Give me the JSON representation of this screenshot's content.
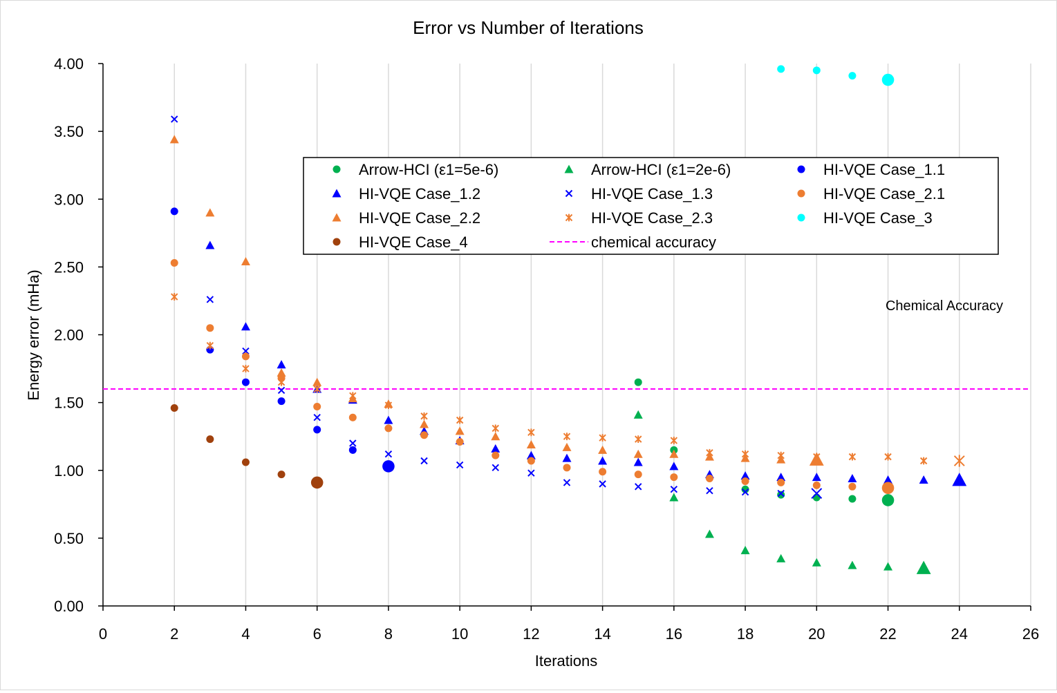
{
  "chart_data": {
    "type": "scatter",
    "title": "Error vs Number of Iterations",
    "xlabel": "Iterations",
    "ylabel": "Energy error (mHa)",
    "xlim": [
      0,
      26
    ],
    "ylim": [
      0,
      4
    ],
    "xticks": [
      "0",
      "2",
      "4",
      "6",
      "8",
      "10",
      "12",
      "14",
      "16",
      "18",
      "20",
      "22",
      "24",
      "26"
    ],
    "yticks": [
      "0.00",
      "0.50",
      "1.00",
      "1.50",
      "2.00",
      "2.50",
      "3.00",
      "3.50",
      "4.00"
    ],
    "grid": "vertical",
    "legend_position": "top-center",
    "annotation": "Chemical Accuracy",
    "reference_line": {
      "name": "chemical accuracy",
      "y": 1.6,
      "color": "#ff00ff",
      "style": "dashed"
    },
    "series": [
      {
        "name": "Arrow-HCI (ε1=5e-6)",
        "marker": "circle",
        "color": "#00b050",
        "x": [
          15,
          16,
          18,
          19,
          20,
          21,
          22
        ],
        "y": [
          1.65,
          1.15,
          0.86,
          0.82,
          0.8,
          0.79,
          0.78
        ]
      },
      {
        "name": "Arrow-HCI (ε1=2e-6)",
        "marker": "triangle",
        "color": "#00b050",
        "x": [
          15,
          16,
          17,
          18,
          19,
          20,
          21,
          22,
          23
        ],
        "y": [
          1.41,
          0.8,
          0.53,
          0.41,
          0.35,
          0.32,
          0.3,
          0.29,
          0.28
        ]
      },
      {
        "name": "HI-VQE Case_1.1",
        "marker": "circle",
        "color": "#0000ff",
        "x": [
          2,
          3,
          4,
          5,
          6,
          7,
          8
        ],
        "y": [
          2.91,
          1.89,
          1.65,
          1.51,
          1.3,
          1.15,
          1.03
        ]
      },
      {
        "name": "HI-VQE Case_1.2",
        "marker": "triangle",
        "color": "#0000ff",
        "x": [
          3,
          4,
          5,
          6,
          7,
          8,
          9,
          10,
          11,
          12,
          13,
          14,
          15,
          16,
          17,
          18,
          19,
          20,
          21,
          22,
          23,
          24
        ],
        "y": [
          2.66,
          2.06,
          1.78,
          1.6,
          1.52,
          1.37,
          1.29,
          1.22,
          1.16,
          1.11,
          1.09,
          1.07,
          1.06,
          1.03,
          0.97,
          0.96,
          0.95,
          0.95,
          0.94,
          0.93,
          0.93,
          0.93
        ]
      },
      {
        "name": "HI-VQE Case_1.3",
        "marker": "x",
        "color": "#0000ff",
        "x": [
          2,
          3,
          4,
          5,
          6,
          7,
          8,
          9,
          10,
          11,
          12,
          13,
          14,
          15,
          16,
          17,
          18,
          19,
          20
        ],
        "y": [
          3.59,
          2.26,
          1.88,
          1.59,
          1.39,
          1.2,
          1.12,
          1.07,
          1.04,
          1.02,
          0.98,
          0.91,
          0.9,
          0.88,
          0.86,
          0.85,
          0.84,
          0.83,
          0.83
        ]
      },
      {
        "name": "HI-VQE Case_2.1",
        "marker": "circle",
        "color": "#ed7d31",
        "x": [
          2,
          3,
          4,
          5,
          6,
          7,
          8,
          9,
          10,
          11,
          12,
          13,
          14,
          15,
          16,
          17,
          18,
          19,
          20,
          21,
          22
        ],
        "y": [
          2.53,
          2.05,
          1.84,
          1.68,
          1.47,
          1.39,
          1.31,
          1.26,
          1.21,
          1.11,
          1.07,
          1.02,
          0.99,
          0.97,
          0.95,
          0.94,
          0.92,
          0.91,
          0.89,
          0.88,
          0.87
        ]
      },
      {
        "name": "HI-VQE Case_2.2",
        "marker": "triangle",
        "color": "#ed7d31",
        "x": [
          2,
          3,
          4,
          5,
          6,
          7,
          8,
          9,
          10,
          11,
          12,
          13,
          14,
          15,
          16,
          17,
          18,
          19,
          20
        ],
        "y": [
          3.44,
          2.9,
          2.54,
          1.72,
          1.65,
          1.53,
          1.49,
          1.34,
          1.29,
          1.25,
          1.19,
          1.17,
          1.15,
          1.12,
          1.12,
          1.1,
          1.09,
          1.08,
          1.08
        ]
      },
      {
        "name": "HI-VQE Case_2.3",
        "marker": "star",
        "color": "#ed7d31",
        "x": [
          2,
          3,
          4,
          5,
          6,
          7,
          8,
          9,
          10,
          11,
          12,
          13,
          14,
          15,
          16,
          17,
          18,
          19,
          20,
          21,
          22,
          23,
          24
        ],
        "y": [
          2.28,
          1.92,
          1.75,
          1.65,
          1.6,
          1.55,
          1.48,
          1.4,
          1.37,
          1.31,
          1.28,
          1.25,
          1.24,
          1.23,
          1.22,
          1.13,
          1.12,
          1.11,
          1.1,
          1.1,
          1.1,
          1.07,
          1.07
        ]
      },
      {
        "name": "HI-VQE Case_3",
        "marker": "circle",
        "color": "#00ffff",
        "x": [
          19,
          20,
          21,
          22
        ],
        "y": [
          3.96,
          3.95,
          3.91,
          3.88
        ]
      },
      {
        "name": "HI-VQE Case_4",
        "marker": "circle",
        "color": "#a0410d",
        "x": [
          2,
          3,
          4,
          5,
          6
        ],
        "y": [
          1.46,
          1.23,
          1.06,
          0.97,
          0.91
        ]
      }
    ]
  }
}
